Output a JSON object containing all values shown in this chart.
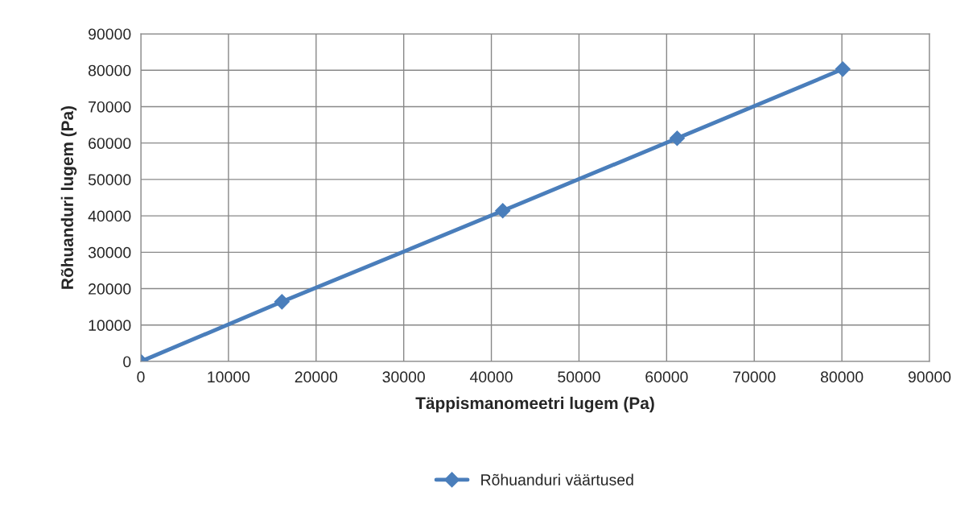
{
  "chart_data": {
    "type": "line",
    "xlabel": "Täppismanomeetri lugem (Pa)",
    "ylabel": "Rõhuanduri lugem (Pa)",
    "x": [
      0,
      16100,
      41300,
      61200,
      80100
    ],
    "series": [
      {
        "name": "Rõhuanduri väärtused",
        "color": "#4a7ebb",
        "values": [
          0,
          16400,
          41400,
          61300,
          80300
        ]
      }
    ],
    "xlim": [
      0,
      90000
    ],
    "xticks": [
      0,
      10000,
      20000,
      30000,
      40000,
      50000,
      60000,
      70000,
      80000,
      90000
    ],
    "ylim": [
      0,
      90000
    ],
    "yticks": [
      0,
      10000,
      20000,
      30000,
      40000,
      50000,
      60000,
      70000,
      80000,
      90000
    ],
    "grid": true,
    "legend": "bottom",
    "marker": "diamond",
    "line_style": "solid"
  }
}
